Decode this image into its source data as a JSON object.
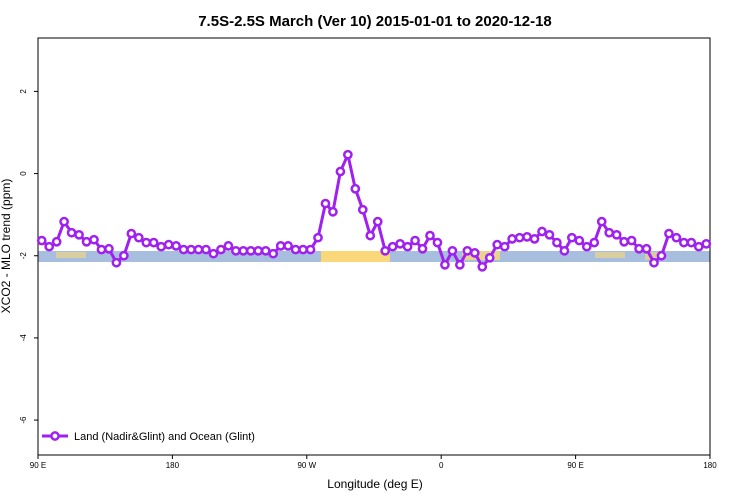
{
  "chart_data": {
    "type": "line",
    "title": "7.5S-2.5S March (Ver 10)   2015-01-01 to 2020-12-18",
    "x_label": "Longitude (deg E)",
    "y_label": "XCO2 - MLO trend (ppm)",
    "xlim": [
      90,
      540
    ],
    "xticks": [
      {
        "value": 90,
        "label": "90 E"
      },
      180,
      {
        "value": 270,
        "label": "90 W"
      },
      {
        "value": 360,
        "label": "0"
      },
      {
        "value": 450,
        "label": "90 E"
      },
      {
        "value": 540,
        "label": "180"
      }
    ],
    "ylim": [
      -6.85,
      3.3
    ],
    "yticks": [
      2,
      0,
      -2,
      -4,
      -6
    ],
    "legend": "bottom-left",
    "x": [
      92.5,
      97.5,
      102.5,
      107.5,
      112.5,
      117.5,
      122.5,
      127.5,
      132.5,
      137.5,
      142.5,
      147.5,
      152.5,
      157.5,
      162.5,
      167.5,
      172.5,
      177.5,
      182.5,
      187.5,
      192.5,
      197.5,
      202.5,
      207.5,
      212.5,
      217.5,
      222.5,
      227.5,
      232.5,
      237.5,
      242.5,
      247.5,
      252.5,
      257.5,
      262.5,
      267.5,
      272.5,
      277.5,
      282.5,
      287.5,
      292.5,
      297.5,
      302.5,
      307.5,
      312.5,
      317.5,
      322.5,
      327.5,
      332.5,
      337.5,
      342.5,
      347.5,
      352.5,
      357.5,
      362.5,
      367.5,
      372.5,
      377.5,
      382.5,
      387.5,
      392.5,
      397.5,
      402.5,
      407.5,
      412.5,
      417.5,
      422.5,
      427.5,
      432.5,
      437.5,
      442.5,
      447.5,
      452.5,
      457.5,
      462.5,
      467.5,
      472.5,
      477.5,
      482.5,
      487.5,
      492.5,
      497.5,
      502.5,
      507.5,
      512.5,
      517.5,
      522.5,
      527.5,
      532.5,
      537.5
    ],
    "series": [
      {
        "name": "Land (Nadir&Glint) and Ocean (Glint)",
        "color": "#a020f0",
        "values": [
          -1.63,
          -1.78,
          -1.66,
          -1.17,
          -1.44,
          -1.49,
          -1.66,
          -1.61,
          -1.85,
          -1.83,
          -2.17,
          -2.0,
          -1.46,
          -1.56,
          -1.68,
          -1.68,
          -1.78,
          -1.73,
          -1.76,
          -1.85,
          -1.85,
          -1.85,
          -1.85,
          -1.95,
          -1.85,
          -1.76,
          -1.88,
          -1.88,
          -1.88,
          -1.88,
          -1.88,
          -1.95,
          -1.76,
          -1.76,
          -1.85,
          -1.85,
          -1.85,
          -1.56,
          -0.73,
          -0.93,
          0.05,
          0.46,
          -0.37,
          -0.88,
          -1.51,
          -1.17,
          -1.88,
          -1.78,
          -1.71,
          -1.78,
          -1.63,
          -1.83,
          -1.51,
          -1.68,
          -2.22,
          -1.88,
          -2.22,
          -1.88,
          -1.93,
          -2.27,
          -2.05,
          -1.73,
          -1.78,
          -1.59,
          -1.56,
          -1.54,
          -1.59,
          -1.41,
          -1.49,
          -1.68,
          -1.88,
          -1.56,
          -1.63,
          -1.78,
          -1.68,
          -1.17,
          -1.44,
          -1.49,
          -1.66,
          -1.63,
          -1.83,
          -1.83,
          -2.17,
          -2.0,
          -1.46,
          -1.56,
          -1.68,
          -1.68,
          -1.78,
          -1.71
        ]
      }
    ]
  }
}
